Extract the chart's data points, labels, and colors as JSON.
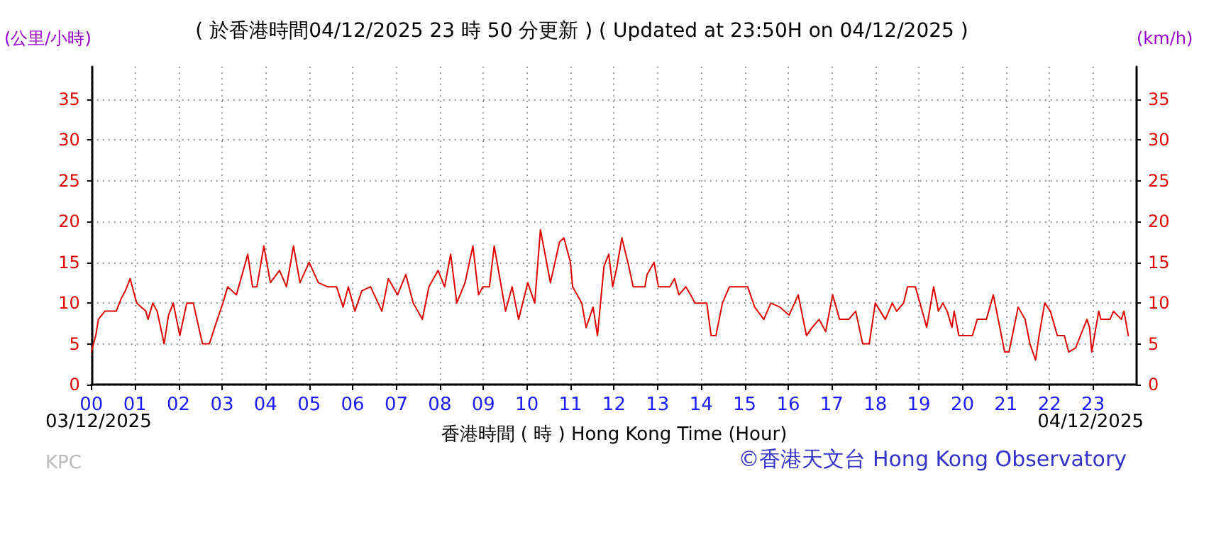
{
  "chart_data": {
    "type": "line",
    "title": "( 於香港時間04/12/2025 23 時 50 分更新 ) ( Updated at 23:50H on 04/12/2025 )",
    "xlabel": "香港時間 ( 時 ) Hong Kong Time (Hour)",
    "ylabel": "(公里/小時)",
    "y2label": "(km/h)",
    "annotations": [
      "03/12/2025",
      "04/12/2025",
      "KPC",
      "©香港天文台 Hong Kong Observatory"
    ],
    "series": [
      {
        "color": "#e00000",
        "x": [
          0,
          0.1,
          0.16,
          0.31,
          0.57,
          0.68,
          0.78,
          0.89,
          0.99,
          1.04,
          1.25,
          1.3,
          1.41,
          1.51,
          1.67,
          1.77,
          1.88,
          2.03,
          2.19,
          2.34,
          2.55,
          2.71,
          2.86,
          3.02,
          3.13,
          3.33,
          3.54,
          3.59,
          3.7,
          3.8,
          3.96,
          4.11,
          4.32,
          4.48,
          4.64,
          4.79,
          5,
          5.21,
          5.42,
          5.63,
          5.78,
          5.9,
          6.05,
          6.21,
          6.41,
          6.67,
          6.82,
          7.03,
          7.22,
          7.39,
          7.6,
          7.75,
          7.96,
          8.11,
          8.25,
          8.39,
          8.58,
          8.76,
          8.89,
          8.99,
          9.14,
          9.25,
          9.51,
          9.66,
          9.81,
          10.02,
          10.18,
          10.31,
          10.54,
          10.75,
          10.85,
          11,
          11.05,
          11.26,
          11.36,
          11.52,
          11.62,
          11.77,
          11.88,
          11.97,
          12.07,
          12.18,
          12.34,
          12.44,
          12.71,
          12.76,
          12.92,
          13.02,
          13.28,
          13.39,
          13.49,
          13.65,
          13.76,
          13.86,
          14.13,
          14.23,
          14.34,
          14.49,
          14.65,
          14.86,
          15.07,
          15.23,
          15.44,
          15.6,
          15.81,
          16.02,
          16.23,
          16.42,
          16.55,
          16.71,
          16.86,
          17.02,
          17.18,
          17.39,
          17.55,
          17.71,
          17.76,
          17.86,
          18,
          18.23,
          18.39,
          18.49,
          18.65,
          18.74,
          18.92,
          19.13,
          19.18,
          19.34,
          19.45,
          19.55,
          19.65,
          19.76,
          19.81,
          19.92,
          20.23,
          20.34,
          20.55,
          20.71,
          20.86,
          20.97,
          21.07,
          21.28,
          21.44,
          21.55,
          21.68,
          21.76,
          21.89,
          22.02,
          22.18,
          22.34,
          22.44,
          22.6,
          22.71,
          22.86,
          22.92,
          22.97,
          23.13,
          23.18,
          23.39,
          23.47,
          23.65,
          23.71,
          23.81
        ],
        "values": [
          4,
          6,
          8,
          9,
          9,
          10.5,
          11.5,
          13,
          11,
          10,
          9,
          8,
          10,
          9,
          5,
          8.5,
          10,
          6,
          10,
          10,
          5,
          5,
          7.5,
          10,
          12,
          11,
          15,
          16,
          12,
          12,
          17,
          12.5,
          14,
          12,
          17,
          12.5,
          15,
          12.5,
          12,
          12,
          9.5,
          12,
          9,
          11.5,
          12,
          9,
          13,
          11,
          13.5,
          10,
          8,
          12,
          14,
          12,
          16,
          10,
          12.5,
          17,
          11,
          12,
          12,
          17,
          9,
          12,
          8,
          12.5,
          10,
          19,
          12.5,
          17.5,
          18,
          15,
          12,
          10,
          7,
          9.5,
          6,
          14.5,
          16,
          12,
          14.5,
          18,
          14.5,
          12,
          12,
          13.5,
          15,
          12,
          12,
          13,
          11,
          12,
          11,
          10,
          10,
          6,
          6,
          10,
          12,
          12,
          12,
          9.5,
          8,
          10,
          9.5,
          8.5,
          11,
          6,
          7,
          8,
          6.5,
          11,
          8,
          8,
          9,
          5,
          5,
          5,
          10,
          8,
          10,
          9,
          10,
          12,
          12,
          8,
          7,
          12,
          9,
          10,
          9,
          7,
          9,
          6,
          6,
          8,
          8,
          11,
          7,
          4,
          4,
          9.5,
          8,
          5,
          3,
          6,
          10,
          9,
          6,
          6,
          4,
          4.5,
          6,
          8,
          7,
          4,
          9,
          8,
          8,
          9,
          8,
          9,
          6
        ]
      }
    ],
    "xlim": [
      0,
      24
    ],
    "xticks": [
      {
        "value": 0,
        "label": "00"
      },
      {
        "value": 1,
        "label": "01"
      },
      {
        "value": 2,
        "label": "02"
      },
      {
        "value": 3,
        "label": "03"
      },
      {
        "value": 4,
        "label": "04"
      },
      {
        "value": 5,
        "label": "05"
      },
      {
        "value": 6,
        "label": "06"
      },
      {
        "value": 7,
        "label": "07"
      },
      {
        "value": 8,
        "label": "08"
      },
      {
        "value": 9,
        "label": "09"
      },
      {
        "value": 10,
        "label": "10"
      },
      {
        "value": 11,
        "label": "11"
      },
      {
        "value": 12,
        "label": "12"
      },
      {
        "value": 13,
        "label": "13"
      },
      {
        "value": 14,
        "label": "14"
      },
      {
        "value": 15,
        "label": "15"
      },
      {
        "value": 16,
        "label": "16"
      },
      {
        "value": 17,
        "label": "17"
      },
      {
        "value": 18,
        "label": "18"
      },
      {
        "value": 19,
        "label": "19"
      },
      {
        "value": 20,
        "label": "20"
      },
      {
        "value": 21,
        "label": "21"
      },
      {
        "value": 22,
        "label": "22"
      },
      {
        "value": 23,
        "label": "23"
      }
    ],
    "ylim": [
      0,
      39
    ],
    "yticks": [
      0,
      5,
      10,
      15,
      20,
      25,
      30,
      35
    ],
    "y2lim": [
      0,
      39
    ],
    "y2ticks": [
      0,
      5,
      10,
      15,
      20,
      25,
      30,
      35
    ],
    "grid": true,
    "marker": "none"
  }
}
